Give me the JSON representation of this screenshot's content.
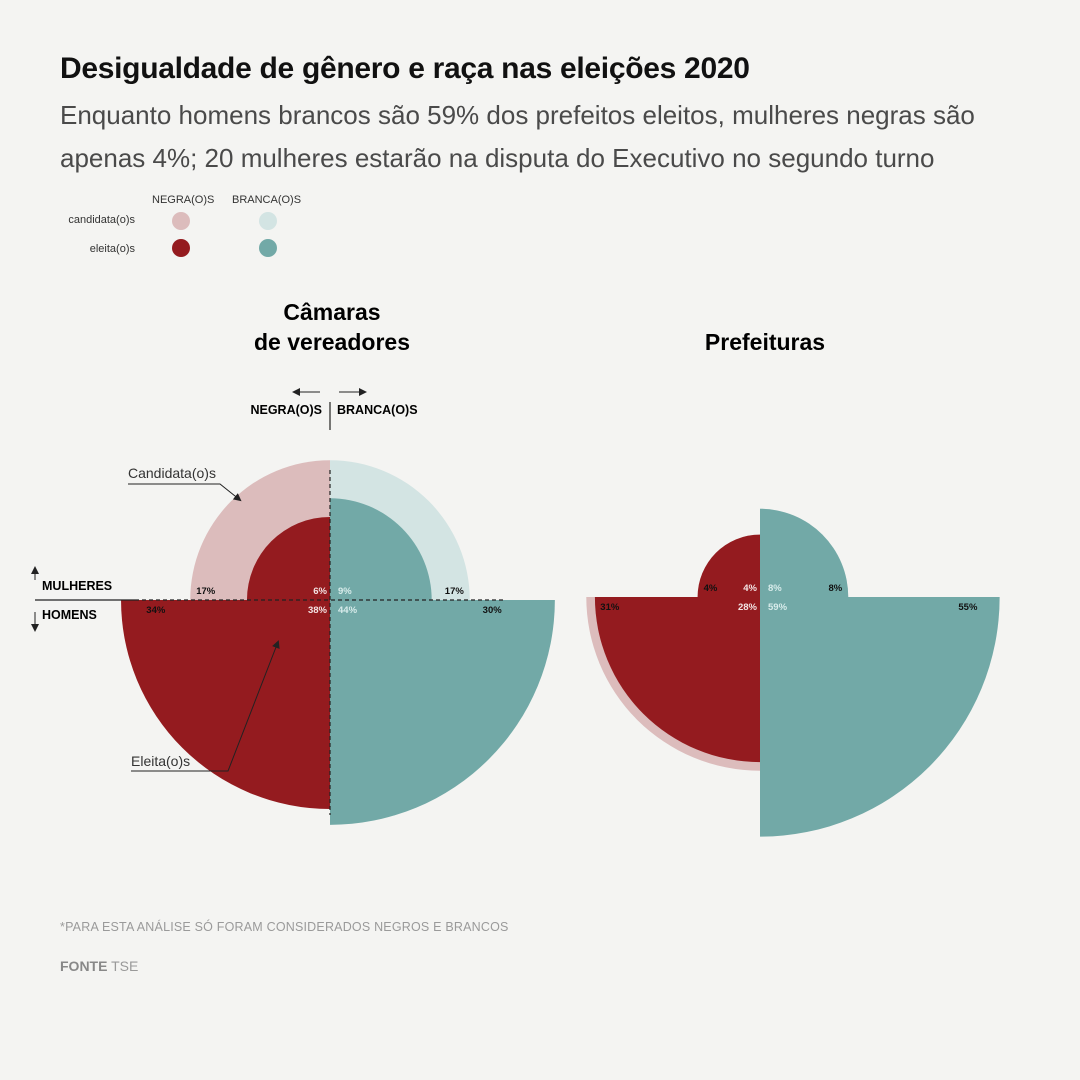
{
  "title": "Desigualdade de gênero e raça nas eleições 2020",
  "subtitle": "Enquanto homens brancos são 59% dos prefeitos eleitos, mulheres negras são apenas 4%; 20 mulheres estarão na disputa do Executivo no segundo turno",
  "legend": {
    "col_negra": "NEGRA(O)S",
    "col_branca": "BRANCA(O)S",
    "row_candidatas": "candidata(o)s",
    "row_eleitas": "eleita(o)s"
  },
  "colors": {
    "negra_candidatas": "#dcbcbc",
    "negra_eleitas": "#941b1f",
    "branca_candidatas": "#d3e4e3",
    "branca_eleitas": "#72a9a7"
  },
  "axis_labels": {
    "negra": "NEGRA(O)S",
    "branca": "BRANCA(O)S",
    "mulheres": "MULHERES",
    "homens": "HOMENS",
    "candidatas": "Candidata(o)s",
    "eleitas": "Eleita(o)s"
  },
  "chart_data": [
    {
      "type": "polar-area",
      "title": "Câmaras de vereadores",
      "title_lines": [
        "Câmaras",
        "de vereadores"
      ],
      "unit": "%",
      "series": [
        {
          "name": "candidata(o)s",
          "values": [
            {
              "race": "negra",
              "gender": "mulheres",
              "value": 17
            },
            {
              "race": "branca",
              "gender": "mulheres",
              "value": 17
            },
            {
              "race": "negra",
              "gender": "homens",
              "value": 34
            },
            {
              "race": "branca",
              "gender": "homens",
              "value": 30
            }
          ]
        },
        {
          "name": "eleita(o)s",
          "values": [
            {
              "race": "negra",
              "gender": "mulheres",
              "value": 6
            },
            {
              "race": "branca",
              "gender": "mulheres",
              "value": 9
            },
            {
              "race": "negra",
              "gender": "homens",
              "value": 38
            },
            {
              "race": "branca",
              "gender": "homens",
              "value": 44
            }
          ]
        }
      ]
    },
    {
      "type": "polar-area",
      "title": "Prefeituras",
      "title_lines": [
        "Prefeituras"
      ],
      "unit": "%",
      "series": [
        {
          "name": "candidata(o)s",
          "values": [
            {
              "race": "negra",
              "gender": "mulheres",
              "value": 4
            },
            {
              "race": "branca",
              "gender": "mulheres",
              "value": 8
            },
            {
              "race": "negra",
              "gender": "homens",
              "value": 31
            },
            {
              "race": "branca",
              "gender": "homens",
              "value": 55
            }
          ]
        },
        {
          "name": "eleita(o)s",
          "values": [
            {
              "race": "negra",
              "gender": "mulheres",
              "value": 4
            },
            {
              "race": "branca",
              "gender": "mulheres",
              "value": 8
            },
            {
              "race": "negra",
              "gender": "homens",
              "value": 28
            },
            {
              "race": "branca",
              "gender": "homens",
              "value": 59
            }
          ]
        }
      ]
    }
  ],
  "footnote": "*PARA ESTA ANÁLISE SÓ FORAM CONSIDERADOS NEGROS E BRANCOS",
  "source": {
    "label": "FONTE",
    "value": "TSE"
  }
}
